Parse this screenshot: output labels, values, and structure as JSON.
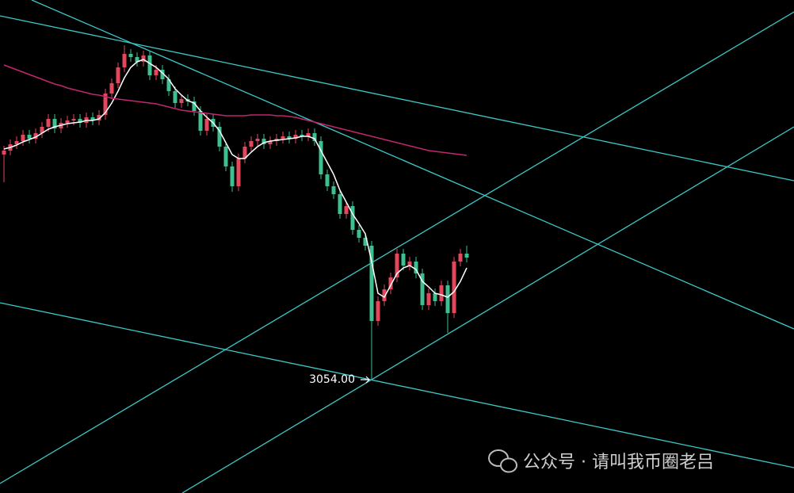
{
  "chart_data": {
    "type": "candlestick",
    "annotation": "3054.00",
    "watermark": "公众号 · 请叫我币圈老吕",
    "ylim": [
      2910,
      3532
    ],
    "up_color": "#e2475b",
    "down_color": "#3fbf8f",
    "open": [
      3337,
      3342,
      3350,
      3354,
      3362,
      3357,
      3364,
      3372,
      3382,
      3370,
      3377,
      3380,
      3382,
      3377,
      3384,
      3380,
      3387,
      3414,
      3427,
      3447,
      3464,
      3460,
      3454,
      3462,
      3437,
      3444,
      3432,
      3417,
      3402,
      3407,
      3404,
      3392,
      3367,
      3382,
      3372,
      3347,
      3322,
      3297,
      3332,
      3347,
      3354,
      3357,
      3350,
      3354,
      3357,
      3360,
      3357,
      3362,
      3360,
      3364,
      3354,
      3312,
      3297,
      3287,
      3262,
      3272,
      3242,
      3232,
      3222,
      3127,
      3152,
      3167,
      3182,
      3212,
      3197,
      3202,
      3187,
      3147,
      3162,
      3152,
      3172,
      3137,
      3202,
      3212
    ],
    "high": [
      3348,
      3356,
      3360,
      3368,
      3368,
      3370,
      3378,
      3388,
      3388,
      3383,
      3386,
      3388,
      3388,
      3390,
      3390,
      3393,
      3420,
      3433,
      3453,
      3475,
      3470,
      3466,
      3468,
      3468,
      3450,
      3450,
      3438,
      3423,
      3413,
      3413,
      3410,
      3398,
      3388,
      3388,
      3378,
      3353,
      3328,
      3338,
      3353,
      3360,
      3363,
      3363,
      3360,
      3363,
      3366,
      3366,
      3368,
      3368,
      3370,
      3370,
      3360,
      3318,
      3303,
      3293,
      3278,
      3278,
      3248,
      3238,
      3228,
      3158,
      3173,
      3188,
      3218,
      3218,
      3208,
      3208,
      3193,
      3168,
      3168,
      3178,
      3178,
      3208,
      3218,
      3222
    ],
    "low": [
      3302,
      3336,
      3344,
      3348,
      3351,
      3351,
      3358,
      3366,
      3364,
      3364,
      3371,
      3374,
      3371,
      3371,
      3374,
      3374,
      3381,
      3408,
      3421,
      3441,
      3454,
      3448,
      3448,
      3431,
      3431,
      3426,
      3411,
      3396,
      3396,
      3398,
      3386,
      3361,
      3361,
      3366,
      3341,
      3316,
      3290,
      3291,
      3326,
      3341,
      3348,
      3344,
      3344,
      3348,
      3351,
      3351,
      3351,
      3354,
      3354,
      3348,
      3306,
      3291,
      3281,
      3256,
      3256,
      3236,
      3226,
      3216,
      3054,
      3121,
      3146,
      3161,
      3176,
      3191,
      3191,
      3181,
      3141,
      3141,
      3146,
      3146,
      3112,
      3131,
      3196,
      3201
    ],
    "close": [
      3342,
      3350,
      3354,
      3362,
      3357,
      3364,
      3372,
      3382,
      3370,
      3377,
      3380,
      3382,
      3377,
      3384,
      3380,
      3387,
      3414,
      3427,
      3447,
      3464,
      3460,
      3454,
      3462,
      3437,
      3444,
      3432,
      3417,
      3402,
      3407,
      3404,
      3392,
      3367,
      3382,
      3372,
      3347,
      3322,
      3297,
      3332,
      3347,
      3354,
      3357,
      3350,
      3354,
      3357,
      3360,
      3357,
      3362,
      3360,
      3364,
      3354,
      3312,
      3297,
      3287,
      3262,
      3272,
      3242,
      3232,
      3222,
      3127,
      3152,
      3167,
      3182,
      3212,
      3197,
      3202,
      3187,
      3147,
      3162,
      3152,
      3172,
      3137,
      3202,
      3212,
      3207
    ],
    "series": [
      {
        "color": "#ffffff",
        "values": [
          3344,
          3346,
          3349,
          3353,
          3356,
          3359,
          3364,
          3369,
          3372,
          3374,
          3376,
          3377,
          3378,
          3380,
          3380,
          3382,
          3390,
          3402,
          3417,
          3434,
          3447,
          3454,
          3457,
          3452,
          3447,
          3440,
          3432,
          3420,
          3412,
          3405,
          3402,
          3392,
          3384,
          3377,
          3367,
          3352,
          3337,
          3332,
          3332,
          3340,
          3347,
          3352,
          3354,
          3355,
          3356,
          3357,
          3358,
          3360,
          3360,
          3357,
          3342,
          3327,
          3312,
          3292,
          3277,
          3262,
          3250,
          3237,
          3202,
          3162,
          3157,
          3172,
          3187,
          3194,
          3197,
          3192,
          3177,
          3170,
          3162,
          3160,
          3157,
          3164,
          3177,
          3194
        ]
      },
      {
        "color": "#c2266e",
        "values": [
          3450,
          3447,
          3444,
          3441,
          3438,
          3435,
          3432,
          3429,
          3426,
          3424,
          3421,
          3419,
          3417,
          3415,
          3413,
          3412,
          3410,
          3408,
          3407,
          3406,
          3405,
          3404,
          3403,
          3402,
          3401,
          3399,
          3397,
          3395,
          3393,
          3392,
          3391,
          3390,
          3389,
          3388,
          3387,
          3386,
          3386,
          3386,
          3386,
          3387,
          3387,
          3387,
          3387,
          3386,
          3386,
          3385,
          3384,
          3382,
          3380,
          3378,
          3376,
          3374,
          3372,
          3370,
          3368,
          3366,
          3364,
          3362,
          3360,
          3358,
          3356,
          3354,
          3352,
          3350,
          3348,
          3346,
          3344,
          3342,
          3341,
          3340,
          3339,
          3338,
          3337,
          3336
        ]
      }
    ]
  }
}
